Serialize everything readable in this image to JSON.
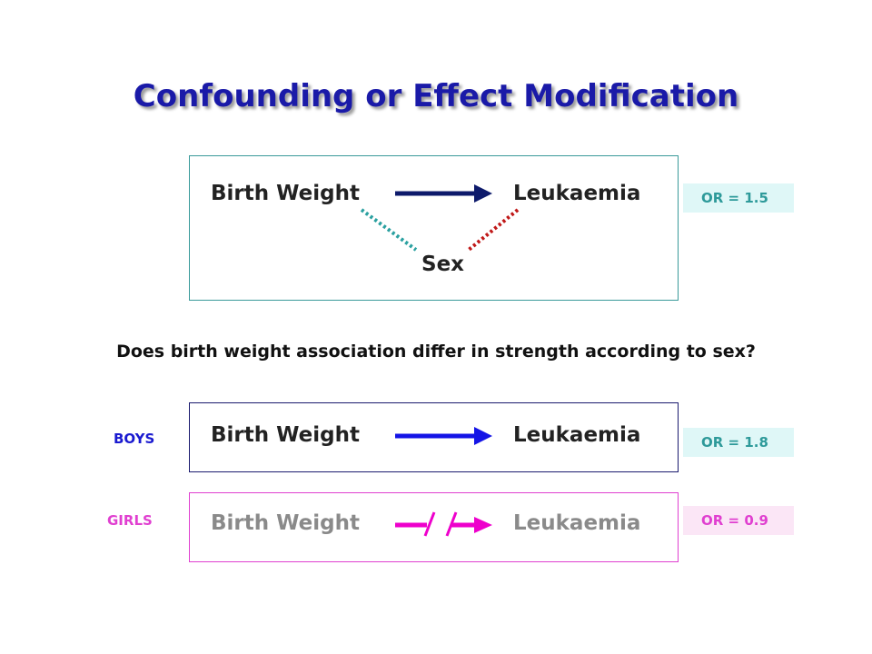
{
  "title": "Confounding or Effect Modification",
  "diagram1": {
    "exposure": "Birth Weight",
    "outcome": "Leukaemia",
    "confounder": "Sex",
    "or_label": "OR = 1.5"
  },
  "question": "Does birth weight association differ in strength according to sex?",
  "boys": {
    "group_label": "BOYS",
    "exposure": "Birth Weight",
    "outcome": "Leukaemia",
    "or_label": "OR = 1.8"
  },
  "girls": {
    "group_label": "GIRLS",
    "exposure": "Birth Weight",
    "outcome": "Leukaemia",
    "or_label": "OR = 0.9"
  },
  "colors": {
    "title": "#1a1aa8",
    "arrow_overall": "#0d1a6b",
    "arrow_boys": "#1414e6",
    "arrow_girls": "#ee00cc",
    "confounder_line_left": "#2aa0a0",
    "confounder_line_right": "#c01818",
    "or_teal": "#2e9a9a",
    "or_pink": "#e040d0",
    "boys_label": "#1a1ad0",
    "girls_label": "#e040d0"
  },
  "icons": {
    "causal_arrow": "right-arrow-icon",
    "broken_arrow": "broken-arrow-icon",
    "dotted_link": "dotted-line"
  }
}
